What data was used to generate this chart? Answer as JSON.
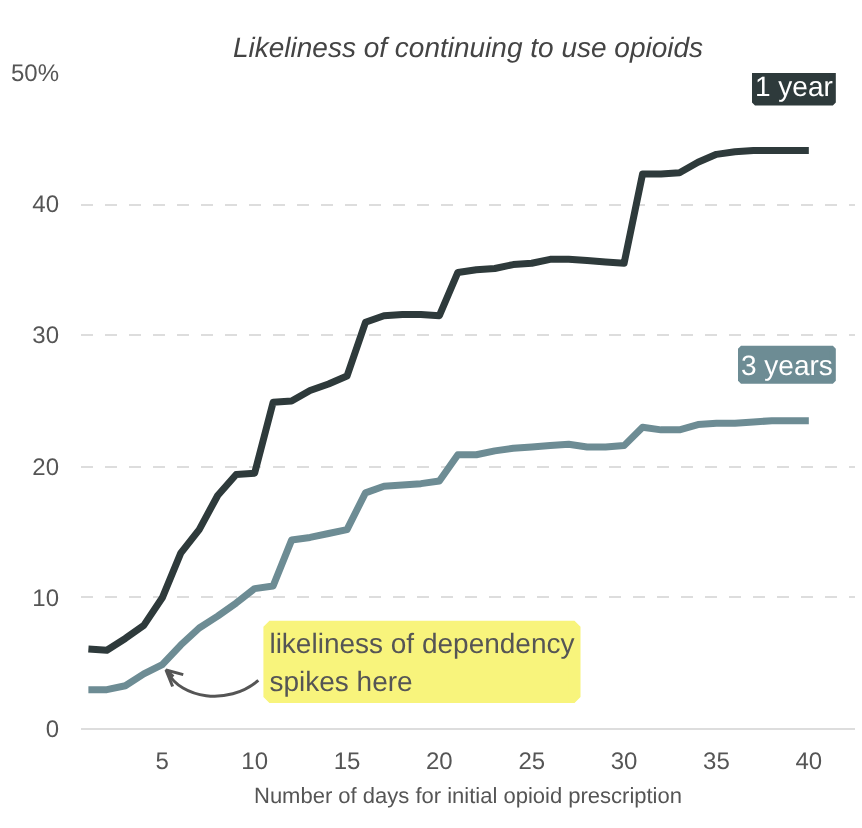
{
  "chart_data": {
    "type": "line",
    "title": "Likeliness of continuing to use opioids",
    "xlabel": "Number of days for initial opioid prescription",
    "x": [
      1,
      2,
      3,
      4,
      5,
      6,
      7,
      8,
      9,
      10,
      11,
      12,
      13,
      14,
      15,
      16,
      17,
      18,
      19,
      20,
      21,
      22,
      23,
      24,
      25,
      26,
      27,
      28,
      29,
      30,
      31,
      32,
      33,
      34,
      35,
      36,
      37,
      38,
      39,
      40
    ],
    "series": [
      {
        "name": "1 year",
        "color": "#2e3a3b",
        "values": [
          6.1,
          6.0,
          6.9,
          7.9,
          10.0,
          13.4,
          15.2,
          17.8,
          19.4,
          19.5,
          24.9,
          25.0,
          25.8,
          26.3,
          26.9,
          31.0,
          31.5,
          31.6,
          31.6,
          31.5,
          34.8,
          35.0,
          35.1,
          35.4,
          35.5,
          35.8,
          35.8,
          35.7,
          35.6,
          35.5,
          42.3,
          42.3,
          42.4,
          43.2,
          43.8,
          44.0,
          44.1,
          44.1,
          44.1,
          44.1
        ]
      },
      {
        "name": "3 years",
        "color": "#6d8c94",
        "values": [
          3.0,
          3.0,
          3.3,
          4.2,
          4.9,
          6.4,
          7.7,
          8.6,
          9.6,
          10.7,
          10.9,
          14.4,
          14.6,
          14.9,
          15.2,
          18.0,
          18.5,
          18.6,
          18.7,
          18.9,
          20.9,
          20.9,
          21.2,
          21.4,
          21.5,
          21.6,
          21.7,
          21.5,
          21.5,
          21.6,
          23.0,
          22.8,
          22.8,
          23.2,
          23.3,
          23.3,
          23.4,
          23.5,
          23.5,
          23.5
        ]
      }
    ],
    "xlim": [
      0.6,
      42.5
    ],
    "ylim": [
      0,
      50
    ],
    "xticks": [
      5,
      10,
      15,
      20,
      25,
      30,
      35,
      40
    ],
    "yticks": [
      0,
      10,
      20,
      30,
      40,
      {
        "value": 50,
        "label": "50%"
      }
    ],
    "annotations": [
      {
        "text": "likeliness of dependency spikes here",
        "x": 5,
        "y": 4.9
      }
    ],
    "grid": "y",
    "legend": false,
    "marker": "none",
    "line_style": "solid"
  }
}
